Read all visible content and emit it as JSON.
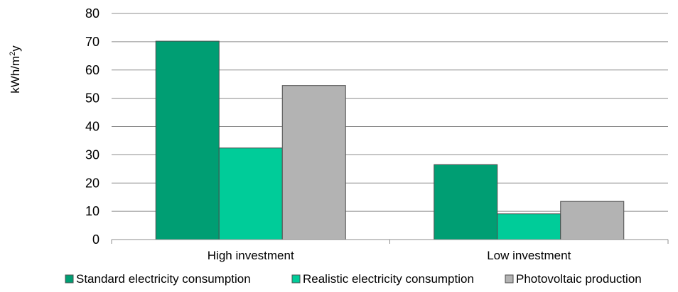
{
  "chart_data": {
    "type": "bar",
    "categories": [
      "High investment",
      "Low investment"
    ],
    "series": [
      {
        "name": "Standard electricity consumption",
        "values": [
          70.2,
          26.5
        ],
        "color": "#009e73"
      },
      {
        "name": "Realistic electricity consumption",
        "values": [
          32.4,
          9.1
        ],
        "color": "#00cc99"
      },
      {
        "name": "Photovoltaic production",
        "values": [
          54.5,
          13.5
        ],
        "color": "#b3b3b3"
      }
    ],
    "title": "",
    "xlabel": "",
    "ylabel": {
      "base": "kWh/m",
      "sup": "2",
      "tail": "y"
    },
    "ylim": [
      0,
      80
    ],
    "yticks": [
      "0",
      "10",
      "20",
      "30",
      "40",
      "50",
      "60",
      "70",
      "80"
    ],
    "grid": true,
    "legend_position": "bottom"
  }
}
